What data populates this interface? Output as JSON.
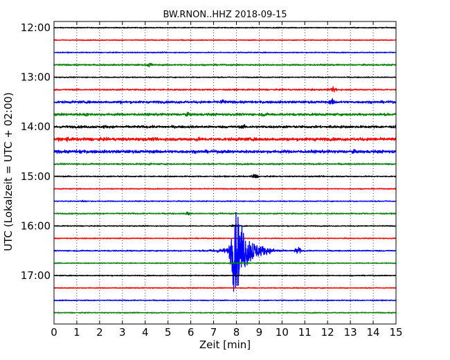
{
  "chart_data": {
    "type": "line",
    "title": "BW.RNON..HHZ 2018-09-15",
    "xlabel": "Zeit  [min]",
    "ylabel": "UTC (Lokalzeit = UTC + 02:00)",
    "xlim": [
      0,
      15
    ],
    "x_ticks": [
      "0",
      "1",
      "2",
      "3",
      "4",
      "5",
      "6",
      "7",
      "8",
      "9",
      "10",
      "11",
      "12",
      "13",
      "14",
      "15"
    ],
    "y_ticks": [
      "12:00",
      "13:00",
      "14:00",
      "15:00",
      "16:00",
      "17:00"
    ],
    "grid": "vertical dotted",
    "trace_interval_min": 15,
    "trace_colors": [
      "#000000",
      "#ff0000",
      "#0000ff",
      "#008000"
    ],
    "traces": [
      {
        "start": "12:00",
        "peak_amplitude": 0.08
      },
      {
        "start": "12:15",
        "peak_amplitude": 0.08
      },
      {
        "start": "12:30",
        "peak_amplitude": 0.08
      },
      {
        "start": "12:45",
        "peak_amplitude": 0.12,
        "events": [
          {
            "t": 4.2,
            "amp": 0.4
          }
        ]
      },
      {
        "start": "13:00",
        "peak_amplitude": 0.08
      },
      {
        "start": "13:15",
        "peak_amplitude": 0.12,
        "events": [
          {
            "t": 11.3,
            "amp": 0.2
          },
          {
            "t": 12.3,
            "amp": 0.5
          }
        ]
      },
      {
        "start": "13:30",
        "peak_amplitude": 0.2,
        "events": [
          {
            "t": 2.9,
            "amp": 0.3
          },
          {
            "t": 7.4,
            "amp": 0.5
          },
          {
            "t": 12.2,
            "amp": 0.55
          }
        ]
      },
      {
        "start": "13:45",
        "peak_amplitude": 0.2,
        "events": [
          {
            "t": 1.4,
            "amp": 0.4
          },
          {
            "t": 5.8,
            "amp": 0.4
          },
          {
            "t": 9.2,
            "amp": 0.4
          }
        ]
      },
      {
        "start": "14:00",
        "peak_amplitude": 0.2,
        "events": [
          {
            "t": 2.2,
            "amp": 0.3
          },
          {
            "t": 8.3,
            "amp": 0.35
          },
          {
            "t": 12.2,
            "amp": 0.4
          }
        ]
      },
      {
        "start": "14:15",
        "peak_amplitude": 0.25,
        "events": [
          {
            "t": 0.6,
            "amp": 0.45
          },
          {
            "t": 6.3,
            "amp": 0.4
          },
          {
            "t": 11.5,
            "amp": 0.35
          }
        ]
      },
      {
        "start": "14:30",
        "peak_amplitude": 0.25,
        "events": [
          {
            "t": 1.2,
            "amp": 0.4
          },
          {
            "t": 4.8,
            "amp": 0.3
          },
          {
            "t": 13.1,
            "amp": 0.4
          }
        ]
      },
      {
        "start": "14:45",
        "peak_amplitude": 0.12,
        "events": [
          {
            "t": 4.2,
            "amp": 0.2
          }
        ]
      },
      {
        "start": "15:00",
        "peak_amplitude": 0.1,
        "events": [
          {
            "t": 8.8,
            "amp": 0.45
          }
        ]
      },
      {
        "start": "15:15",
        "peak_amplitude": 0.08
      },
      {
        "start": "15:30",
        "peak_amplitude": 0.08,
        "events": [
          {
            "t": 1.3,
            "amp": 0.2
          }
        ]
      },
      {
        "start": "15:45",
        "peak_amplitude": 0.1,
        "events": [
          {
            "t": 5.9,
            "amp": 0.4
          },
          {
            "t": 7.3,
            "amp": 0.2
          }
        ]
      },
      {
        "start": "16:00",
        "peak_amplitude": 0.08,
        "events": [
          {
            "t": 7.9,
            "amp": 0.3
          }
        ]
      },
      {
        "start": "16:15",
        "peak_amplitude": 0.08
      },
      {
        "start": "16:30",
        "peak_amplitude": 0.1,
        "events": [
          {
            "t": 7.9,
            "amp": 8.0
          },
          {
            "t": 10.7,
            "amp": 0.6
          }
        ]
      },
      {
        "start": "16:45",
        "peak_amplitude": 0.08
      },
      {
        "start": "17:00",
        "peak_amplitude": 0.08
      },
      {
        "start": "17:15",
        "peak_amplitude": 0.08
      },
      {
        "start": "17:30",
        "peak_amplitude": 0.08
      },
      {
        "start": "17:45",
        "peak_amplitude": 0.08
      }
    ]
  }
}
